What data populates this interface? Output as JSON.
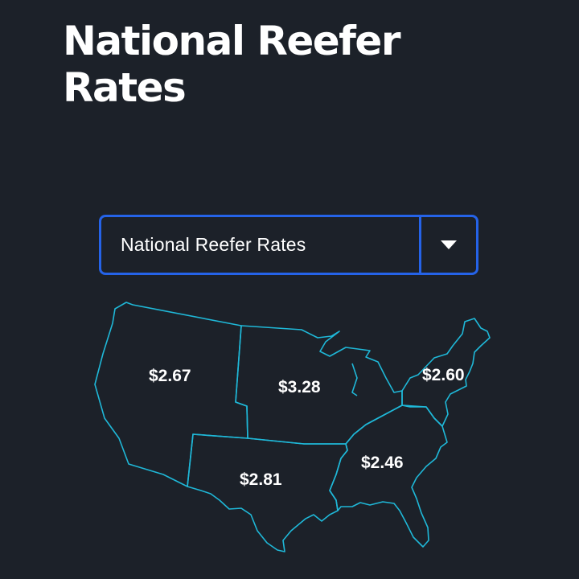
{
  "title": "National Reefer Rates",
  "dropdown": {
    "selected": "National Reefer Rates"
  },
  "icons": {
    "dropdown_caret": "caret-down-icon"
  },
  "colors": {
    "background": "#1c2129",
    "dropdown_border": "#2563e8",
    "map_outline": "#1fb8d8",
    "text": "#ffffff"
  },
  "regions": {
    "west": {
      "rate": "$2.67"
    },
    "midwest": {
      "rate": "$3.28"
    },
    "northeast": {
      "rate": "$2.60"
    },
    "southwest": {
      "rate": "$2.81"
    },
    "southeast": {
      "rate": "$2.46"
    }
  }
}
